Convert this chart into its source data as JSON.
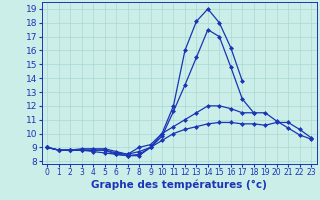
{
  "xlabel": "Graphe des températures (°c)",
  "hours": [
    0,
    1,
    2,
    3,
    4,
    5,
    6,
    7,
    8,
    9,
    10,
    11,
    12,
    13,
    14,
    15,
    16,
    17,
    18,
    19,
    20,
    21,
    22,
    23
  ],
  "line1": [
    9.0,
    8.8,
    8.8,
    8.8,
    8.8,
    8.8,
    8.5,
    8.4,
    8.4,
    9.0,
    10.0,
    12.0,
    16.0,
    18.1,
    19.0,
    18.0,
    16.2,
    13.8,
    null,
    null,
    null,
    null,
    null,
    null
  ],
  "line2": [
    9.0,
    8.8,
    8.8,
    8.8,
    8.7,
    8.6,
    8.5,
    8.4,
    8.5,
    9.0,
    9.8,
    11.6,
    13.5,
    15.5,
    17.5,
    17.0,
    14.8,
    12.5,
    11.5,
    null,
    null,
    null,
    null,
    null
  ],
  "line3": [
    9.0,
    8.8,
    8.8,
    8.9,
    8.9,
    8.9,
    8.7,
    8.5,
    9.0,
    9.2,
    10.0,
    10.5,
    11.0,
    11.5,
    12.0,
    12.0,
    11.8,
    11.5,
    11.5,
    11.5,
    10.9,
    10.4,
    9.9,
    9.6
  ],
  "line4": [
    9.0,
    8.8,
    8.8,
    8.8,
    8.8,
    8.8,
    8.6,
    8.5,
    8.7,
    9.0,
    9.5,
    10.0,
    10.3,
    10.5,
    10.7,
    10.8,
    10.8,
    10.7,
    10.7,
    10.6,
    10.8,
    10.8,
    10.3,
    9.7
  ],
  "ylim": [
    7.8,
    19.5
  ],
  "yticks": [
    8,
    9,
    10,
    11,
    12,
    13,
    14,
    15,
    16,
    17,
    18,
    19
  ],
  "line_color": "#1a35b5",
  "bg_color": "#cceee8",
  "grid_color": "#aad8d4",
  "marker": "D",
  "markersize": 2.0,
  "linewidth": 0.9,
  "xlabel_fontsize": 7.5,
  "ytick_fontsize": 6.5,
  "xtick_fontsize": 5.5
}
